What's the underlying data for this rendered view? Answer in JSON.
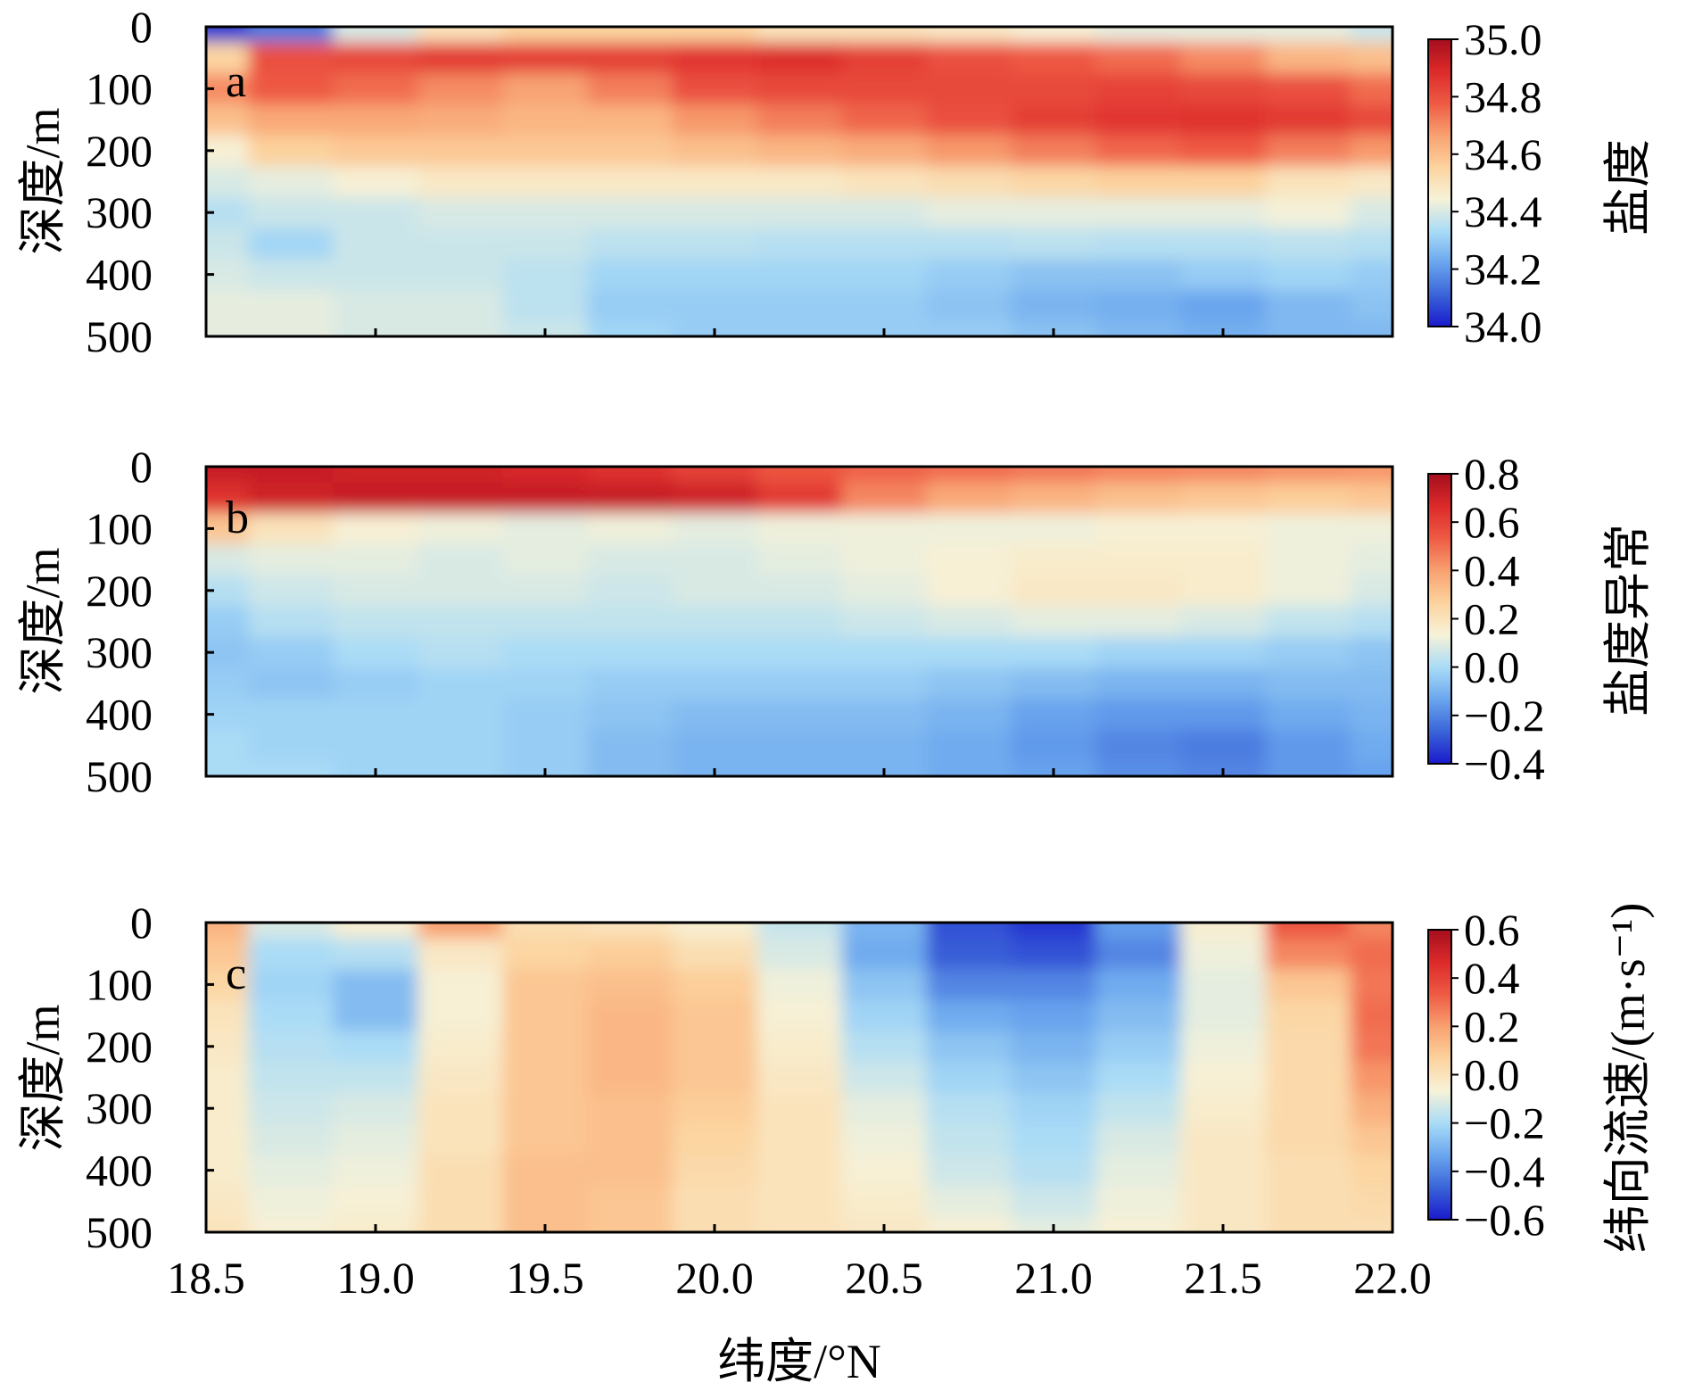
{
  "figure": {
    "xlabel": "纬度/°N",
    "x_ticks": [
      "18.5",
      "19.0",
      "19.5",
      "20.0",
      "20.5",
      "21.0",
      "21.5",
      "22.0"
    ]
  },
  "chart_data": [
    {
      "type": "heatmap",
      "panel": "a",
      "ylabel": "深度/m",
      "colorbar_label": "盐度",
      "xlim": [
        18.5,
        22.0
      ],
      "ylim": [
        500,
        0
      ],
      "y_ticks": [
        "0",
        "100",
        "200",
        "300",
        "400",
        "500"
      ],
      "colorbar_ticks": [
        "35.0",
        "34.8",
        "34.6",
        "34.4",
        "34.2",
        "34.0"
      ],
      "vmin": 34.0,
      "vmax": 35.0,
      "x": [
        18.5,
        18.75,
        19.0,
        19.25,
        19.5,
        19.75,
        20.0,
        20.25,
        20.5,
        20.75,
        21.0,
        21.25,
        21.5,
        21.75,
        22.0
      ],
      "y": [
        0,
        50,
        100,
        150,
        200,
        250,
        300,
        350,
        400,
        450,
        500
      ],
      "z": [
        [
          34.05,
          34.15,
          34.4,
          34.5,
          34.55,
          34.55,
          34.55,
          34.5,
          34.5,
          34.48,
          34.45,
          34.42,
          34.42,
          34.42,
          34.38
        ],
        [
          34.55,
          34.8,
          34.82,
          34.85,
          34.84,
          34.84,
          34.86,
          34.88,
          34.84,
          34.8,
          34.78,
          34.75,
          34.7,
          34.62,
          34.6
        ],
        [
          34.7,
          34.78,
          34.75,
          34.7,
          34.66,
          34.72,
          34.8,
          34.82,
          34.82,
          34.82,
          34.82,
          34.83,
          34.82,
          34.8,
          34.75
        ],
        [
          34.6,
          34.65,
          34.65,
          34.64,
          34.62,
          34.62,
          34.68,
          34.72,
          34.76,
          34.8,
          34.84,
          34.86,
          34.87,
          34.85,
          34.82
        ],
        [
          34.45,
          34.56,
          34.58,
          34.58,
          34.58,
          34.58,
          34.6,
          34.62,
          34.64,
          34.68,
          34.72,
          34.76,
          34.78,
          34.72,
          34.68
        ],
        [
          34.4,
          34.42,
          34.45,
          34.48,
          34.48,
          34.48,
          34.48,
          34.48,
          34.5,
          34.52,
          34.54,
          34.56,
          34.56,
          34.5,
          34.48
        ],
        [
          34.35,
          34.38,
          34.38,
          34.4,
          34.4,
          34.4,
          34.4,
          34.4,
          34.4,
          34.42,
          34.42,
          34.42,
          34.42,
          34.44,
          34.4
        ],
        [
          34.38,
          34.32,
          34.38,
          34.38,
          34.38,
          34.36,
          34.36,
          34.35,
          34.35,
          34.35,
          34.36,
          34.35,
          34.35,
          34.36,
          34.35
        ],
        [
          34.4,
          34.38,
          34.38,
          34.38,
          34.36,
          34.32,
          34.32,
          34.32,
          34.32,
          34.3,
          34.28,
          34.28,
          34.3,
          34.32,
          34.3
        ],
        [
          34.42,
          34.42,
          34.4,
          34.4,
          34.36,
          34.3,
          34.3,
          34.3,
          34.3,
          34.28,
          34.25,
          34.24,
          34.22,
          34.26,
          34.28
        ],
        [
          34.42,
          34.42,
          34.4,
          34.4,
          34.38,
          34.32,
          34.3,
          34.3,
          34.3,
          34.3,
          34.28,
          34.26,
          34.24,
          34.26,
          34.26
        ]
      ]
    },
    {
      "type": "heatmap",
      "panel": "b",
      "ylabel": "深度/m",
      "colorbar_label": "盐度异常",
      "xlim": [
        18.5,
        22.0
      ],
      "ylim": [
        500,
        0
      ],
      "y_ticks": [
        "0",
        "100",
        "200",
        "300",
        "400",
        "500"
      ],
      "colorbar_ticks": [
        "0.8",
        "0.6",
        "0.4",
        "0.2",
        "0.0",
        "−0.2",
        "−0.4"
      ],
      "vmin": -0.4,
      "vmax": 0.8,
      "x": [
        18.5,
        18.75,
        19.0,
        19.25,
        19.5,
        19.75,
        20.0,
        20.25,
        20.5,
        20.75,
        21.0,
        21.25,
        21.5,
        21.75,
        22.0
      ],
      "y": [
        0,
        50,
        100,
        150,
        200,
        250,
        300,
        350,
        400,
        450,
        500
      ],
      "z": [
        [
          0.72,
          0.72,
          0.7,
          0.7,
          0.68,
          0.65,
          0.6,
          0.55,
          0.52,
          0.5,
          0.48,
          0.46,
          0.45,
          0.43,
          0.42
        ],
        [
          0.65,
          0.7,
          0.72,
          0.72,
          0.72,
          0.72,
          0.7,
          0.62,
          0.45,
          0.38,
          0.35,
          0.32,
          0.3,
          0.28,
          0.3
        ],
        [
          0.3,
          0.2,
          0.14,
          0.12,
          0.1,
          0.12,
          0.1,
          0.12,
          0.12,
          0.12,
          0.12,
          0.14,
          0.14,
          0.12,
          0.12
        ],
        [
          0.08,
          0.1,
          0.1,
          0.08,
          0.1,
          0.08,
          0.08,
          0.1,
          0.12,
          0.14,
          0.16,
          0.16,
          0.16,
          0.12,
          0.1
        ],
        [
          0.02,
          0.06,
          0.08,
          0.08,
          0.08,
          0.06,
          0.08,
          0.08,
          0.1,
          0.14,
          0.18,
          0.18,
          0.16,
          0.12,
          0.08
        ],
        [
          -0.04,
          0.02,
          0.04,
          0.04,
          0.04,
          0.04,
          0.04,
          0.04,
          0.06,
          0.08,
          0.1,
          0.1,
          0.08,
          0.04,
          0.02
        ],
        [
          -0.06,
          -0.04,
          0.0,
          0.02,
          0.0,
          0.0,
          0.0,
          0.0,
          0.0,
          0.0,
          0.0,
          -0.02,
          -0.02,
          -0.04,
          -0.06
        ],
        [
          -0.04,
          -0.06,
          -0.04,
          -0.02,
          -0.02,
          -0.04,
          -0.04,
          -0.04,
          -0.04,
          -0.06,
          -0.08,
          -0.1,
          -0.1,
          -0.08,
          -0.08
        ],
        [
          -0.02,
          -0.02,
          -0.02,
          -0.02,
          -0.04,
          -0.06,
          -0.08,
          -0.08,
          -0.08,
          -0.1,
          -0.14,
          -0.16,
          -0.16,
          -0.12,
          -0.1
        ],
        [
          0.0,
          -0.02,
          -0.02,
          -0.02,
          -0.04,
          -0.08,
          -0.1,
          -0.1,
          -0.1,
          -0.12,
          -0.16,
          -0.2,
          -0.22,
          -0.16,
          -0.12
        ],
        [
          0.0,
          0.0,
          -0.02,
          -0.02,
          -0.04,
          -0.08,
          -0.1,
          -0.1,
          -0.1,
          -0.12,
          -0.14,
          -0.18,
          -0.2,
          -0.16,
          -0.14
        ]
      ]
    },
    {
      "type": "heatmap",
      "panel": "c",
      "ylabel": "深度/m",
      "colorbar_label": "纬向流速/(m·s⁻¹)",
      "xlim": [
        18.5,
        22.0
      ],
      "ylim": [
        500,
        0
      ],
      "y_ticks": [
        "0",
        "100",
        "200",
        "300",
        "400",
        "500"
      ],
      "colorbar_ticks": [
        "0.6",
        "0.4",
        "0.2",
        "0.0",
        "−0.2",
        "−0.4",
        "−0.6"
      ],
      "vmin": -0.6,
      "vmax": 0.6,
      "x": [
        18.5,
        18.75,
        19.0,
        19.25,
        19.5,
        19.75,
        20.0,
        20.25,
        20.5,
        20.75,
        21.0,
        21.25,
        21.5,
        21.75,
        22.0
      ],
      "y": [
        0,
        50,
        100,
        150,
        200,
        250,
        300,
        350,
        400,
        450,
        500
      ],
      "z": [
        [
          0.15,
          -0.12,
          -0.05,
          0.2,
          0.02,
          0.0,
          -0.05,
          -0.15,
          -0.3,
          -0.5,
          -0.55,
          -0.35,
          -0.05,
          0.35,
          0.25
        ],
        [
          0.1,
          -0.2,
          -0.18,
          -0.02,
          0.06,
          0.08,
          0.02,
          -0.12,
          -0.32,
          -0.48,
          -0.5,
          -0.4,
          -0.08,
          0.25,
          0.3
        ],
        [
          0.05,
          -0.22,
          -0.28,
          -0.06,
          0.1,
          0.12,
          0.08,
          -0.08,
          -0.26,
          -0.4,
          -0.4,
          -0.32,
          -0.1,
          0.1,
          0.28
        ],
        [
          0.0,
          -0.2,
          -0.28,
          -0.06,
          0.1,
          0.14,
          0.1,
          -0.06,
          -0.22,
          -0.32,
          -0.34,
          -0.28,
          -0.1,
          0.05,
          0.3
        ],
        [
          -0.02,
          -0.18,
          -0.2,
          -0.04,
          0.1,
          0.14,
          0.1,
          -0.04,
          -0.18,
          -0.26,
          -0.3,
          -0.24,
          -0.08,
          0.04,
          0.28
        ],
        [
          -0.04,
          -0.16,
          -0.16,
          -0.02,
          0.1,
          0.14,
          0.1,
          -0.02,
          -0.14,
          -0.22,
          -0.26,
          -0.2,
          -0.06,
          0.04,
          0.22
        ],
        [
          -0.04,
          -0.14,
          -0.12,
          0.0,
          0.1,
          0.12,
          0.08,
          0.0,
          -0.1,
          -0.18,
          -0.22,
          -0.16,
          -0.04,
          0.04,
          0.16
        ],
        [
          -0.04,
          -0.12,
          -0.1,
          0.0,
          0.1,
          0.12,
          0.06,
          0.0,
          -0.08,
          -0.16,
          -0.2,
          -0.12,
          -0.02,
          0.04,
          0.1
        ],
        [
          -0.04,
          -0.1,
          -0.08,
          0.02,
          0.12,
          0.12,
          0.04,
          0.0,
          -0.06,
          -0.14,
          -0.18,
          -0.1,
          -0.02,
          0.02,
          0.06
        ],
        [
          -0.02,
          -0.08,
          -0.06,
          0.02,
          0.12,
          0.1,
          0.02,
          0.0,
          -0.04,
          -0.1,
          -0.14,
          -0.08,
          -0.02,
          0.02,
          0.04
        ],
        [
          0.0,
          -0.06,
          -0.04,
          0.02,
          0.12,
          0.1,
          0.02,
          0.0,
          -0.02,
          -0.06,
          -0.1,
          -0.06,
          -0.02,
          0.02,
          0.02
        ]
      ]
    }
  ],
  "colors": {
    "colormap": [
      "#1a1acc",
      "#3a64d8",
      "#6aa6ee",
      "#aadcf6",
      "#f7f2d8",
      "#fcd39e",
      "#f8a070",
      "#ee5a44",
      "#dc2a2a",
      "#a50e1e"
    ]
  }
}
